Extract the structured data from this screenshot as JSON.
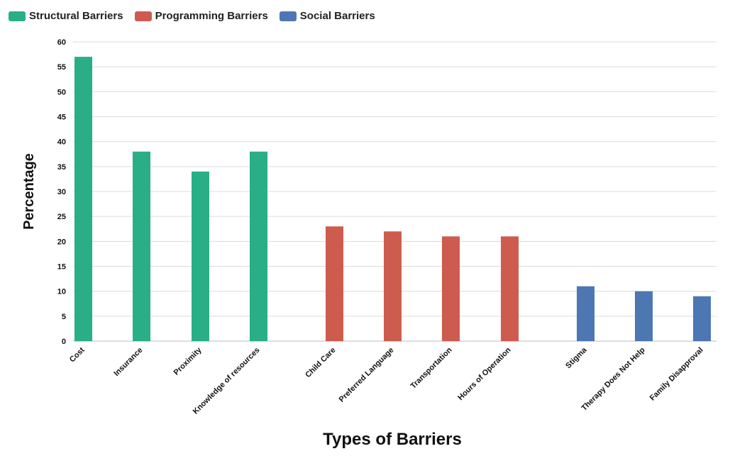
{
  "legend": [
    {
      "label": "Structural Barriers",
      "color": "#29ae86"
    },
    {
      "label": "Programming Barriers",
      "color": "#cd5c4e"
    },
    {
      "label": "Social Barriers",
      "color": "#4c77b3"
    }
  ],
  "chart_data": {
    "type": "bar",
    "title": "",
    "xlabel": "Types of Barriers",
    "ylabel": "Percentage",
    "ylim": [
      0,
      60
    ],
    "yticks": [
      0,
      5,
      10,
      15,
      20,
      25,
      30,
      35,
      40,
      45,
      50,
      55,
      60
    ],
    "grid": true,
    "legend_position": "top-left",
    "categories": [
      "Cost",
      "Insurance",
      "Proximity",
      "Knowledge of resources",
      "Child Care",
      "Preferred Language",
      "Transportation",
      "Hours of Operation",
      "Stigma",
      "Therapy Does Not Help",
      "Family Disapproval"
    ],
    "series": [
      {
        "name": "Structural Barriers",
        "color": "#29ae86",
        "values": [
          57,
          38,
          34,
          38,
          null,
          null,
          null,
          null,
          null,
          null,
          null
        ]
      },
      {
        "name": "Programming Barriers",
        "color": "#cd5c4e",
        "values": [
          null,
          null,
          null,
          null,
          23,
          22,
          21,
          21,
          null,
          null,
          null
        ]
      },
      {
        "name": "Social Barriers",
        "color": "#4c77b3",
        "values": [
          null,
          null,
          null,
          null,
          null,
          null,
          null,
          null,
          11,
          10,
          9
        ]
      }
    ]
  }
}
